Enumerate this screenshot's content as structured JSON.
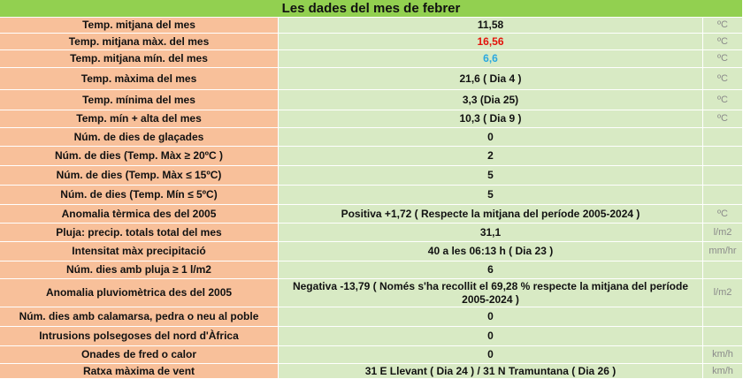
{
  "header": {
    "title": "Les dades del mes de febrer"
  },
  "table": {
    "rows": [
      {
        "label": "Temp. mitjana del mes",
        "value": "11,58",
        "unit": "ºC"
      },
      {
        "label": "Temp. mitjana màx. del mes",
        "value": "16,56",
        "unit": "ºC"
      },
      {
        "label": "Temp. mitjana mín. del mes",
        "value": "6,6",
        "unit": "ºC"
      },
      {
        "label": "Temp. màxima del mes",
        "value": "21,6  ( Dia 4 )",
        "unit": "ºC"
      },
      {
        "label": "Temp. mínima del mes",
        "value": "3,3 (Dia 25)",
        "unit": "ºC"
      },
      {
        "label": "Temp. mín + alta del mes",
        "value": "10,3 ( Dia 9 )",
        "unit": "ºC"
      },
      {
        "label": "Núm. de dies  de glaçades",
        "value": "0"
      },
      {
        "label": "Núm. de dies  (Temp. Màx ≥ 20ºC )",
        "value": "2"
      },
      {
        "label": "Núm. de dies (Temp. Màx ≤ 15ºC)",
        "value": "5"
      },
      {
        "label": "Núm. de dies (Temp. Mín ≤ 5ºC)",
        "value": "5"
      },
      {
        "label": "Anomalia tèrmica des del 2005",
        "value": "Positiva +1,72  ( Respecte la mitjana del període 2005-2024 )",
        "unit": "ºC"
      },
      {
        "label": "Pluja: precip. totals total del mes",
        "value": "31,1",
        "unit": "l/m2"
      },
      {
        "label": "Intensitat màx precipitació",
        "value": "40 a les 06:13 h  ( Dia 23 )",
        "unit": "mm/hr"
      },
      {
        "label": "Núm. dies amb pluja ≥ 1 l/m2",
        "value": "6"
      },
      {
        "label": "Anomalia pluviomètrica des del 2005",
        "value": "Negativa -13,79 ( Només s'ha recollit el 69,28 % respecte la mitjana del període 2005-2024 )",
        "unit": "l/m2"
      },
      {
        "label": "Núm. dies amb calamarsa, pedra o neu al poble",
        "value": "0"
      },
      {
        "label": "Intrusions polsegoses del nord d'Àfrica",
        "value": "0"
      },
      {
        "label": "Onades de fred o calor",
        "value": "0",
        "unit": "km/h"
      },
      {
        "label": "Ratxa màxima de vent",
        "value": "31 E Llevant   ( Dia 24 ) / 31 N Tramuntana ( Dia 26 )",
        "unit": "km/h"
      }
    ]
  }
}
